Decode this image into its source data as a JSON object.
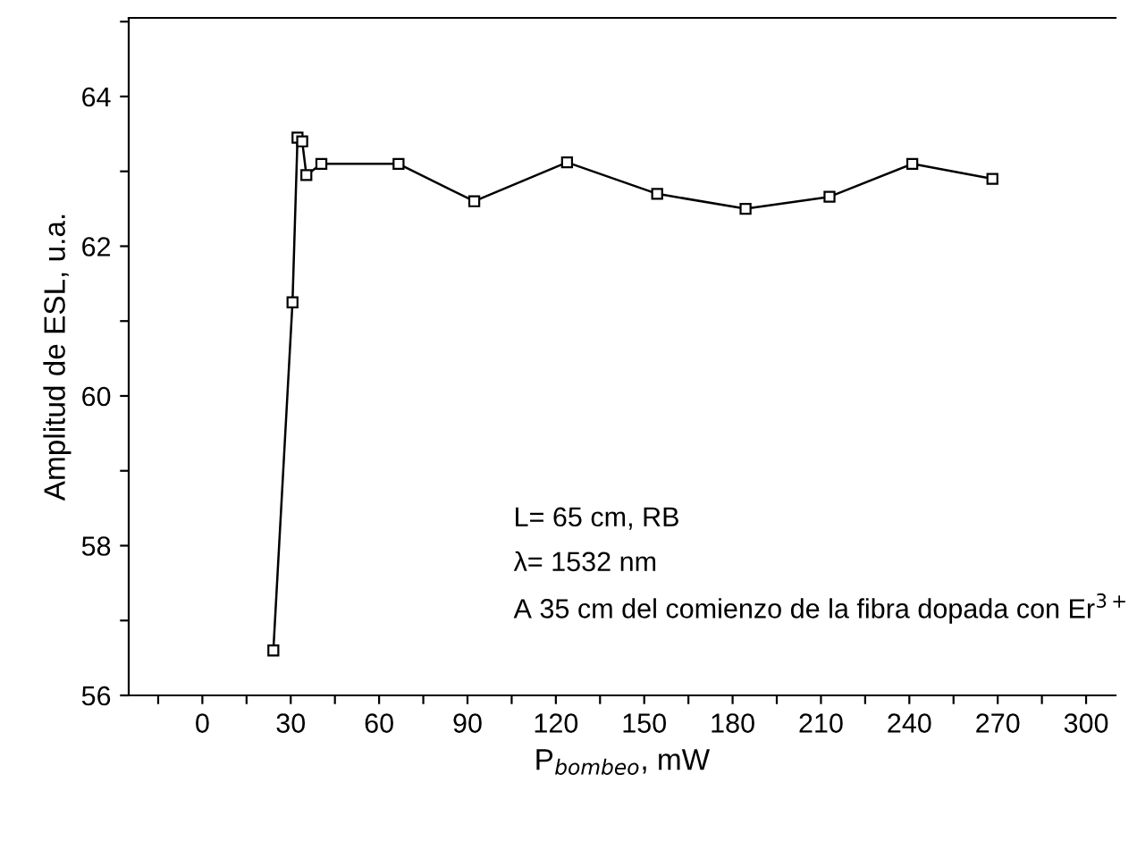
{
  "chart_data": {
    "type": "line",
    "xlabel": "P$_{bombeo}$, mW",
    "ylabel": "Amplitud de ESL, u.a.",
    "annotations": [
      "L= 65 cm, RB",
      "λ= 1532 nm",
      "A 35 cm del comienzo de la fibra dopada con Er$^{3+}$"
    ],
    "series": [
      {
        "color": "#000000",
        "x": [
          24.1,
          30.6,
          32.3,
          33.9,
          35.3,
          40.4,
          66.6,
          92.3,
          123.8,
          154.4,
          184.4,
          212.9,
          241,
          268.2
        ],
        "values": [
          56.6,
          61.25,
          63.45,
          63.4,
          62.95,
          63.1,
          63.1,
          62.6,
          63.12,
          62.7,
          62.5,
          62.66,
          63.1,
          62.9
        ]
      }
    ],
    "marker": "square",
    "line_style": "solid",
    "grid": false,
    "legend": false,
    "xlim": [
      -25,
      310
    ],
    "ylim": [
      56,
      65.05
    ],
    "xticks": [
      {
        "value": -15,
        "label": null
      },
      0,
      {
        "value": 15,
        "label": null
      },
      30,
      {
        "value": 45,
        "label": null
      },
      60,
      {
        "value": 75,
        "label": null
      },
      90,
      {
        "value": 105,
        "label": null
      },
      120,
      {
        "value": 135,
        "label": null
      },
      150,
      {
        "value": 165,
        "label": null
      },
      180,
      {
        "value": 195,
        "label": null
      },
      210,
      {
        "value": 225,
        "label": null
      },
      240,
      {
        "value": 255,
        "label": null
      },
      270,
      {
        "value": 285,
        "label": null
      },
      300
    ],
    "yticks": [
      56,
      {
        "value": 57,
        "label": null
      },
      58,
      {
        "value": 59,
        "label": null
      },
      60,
      {
        "value": 61,
        "label": null
      },
      62,
      {
        "value": 63,
        "label": null
      },
      64,
      {
        "value": 65,
        "label": null
      }
    ]
  }
}
